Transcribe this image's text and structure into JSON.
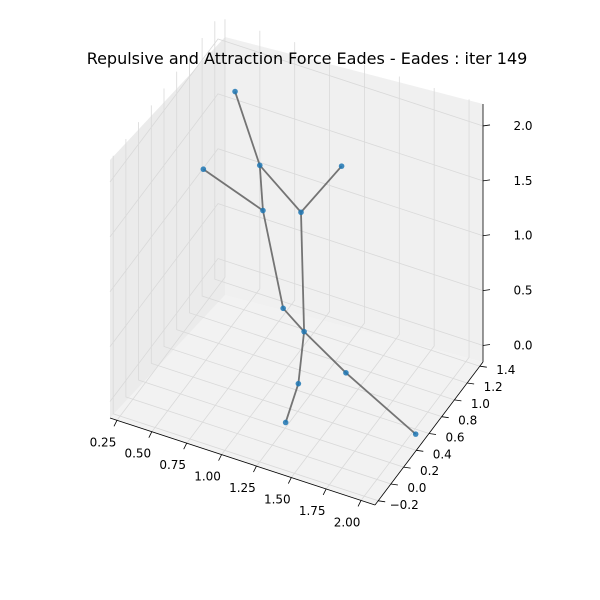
{
  "chart_data": {
    "type": "scatter",
    "projection": "3d",
    "title": "Repulsive and Attraction Force Eades - Eades : iter 149",
    "x_ticks": [
      "0.25",
      "0.50",
      "0.75",
      "1.00",
      "1.25",
      "1.50",
      "1.75",
      "2.00"
    ],
    "y_ticks": [
      "−0.2",
      "0.0",
      "0.2",
      "0.4",
      "0.6",
      "0.8",
      "1.0",
      "1.2",
      "1.4"
    ],
    "z_ticks": [
      "0.0",
      "0.5",
      "1.0",
      "1.5",
      "2.0"
    ],
    "xlim": [
      0.2,
      2.1
    ],
    "ylim": [
      -0.25,
      1.45
    ],
    "zlim": [
      -0.15,
      2.2
    ],
    "grid": true,
    "node_color": "#1f77b4",
    "edge_color": "#666666",
    "nodes": [
      {
        "x": 0.55,
        "y": 0.95,
        "z": 2.05
      },
      {
        "x": 0.75,
        "y": 0.9,
        "z": 1.5
      },
      {
        "x": 0.75,
        "y": 0.95,
        "z": 1.05
      },
      {
        "x": 0.3,
        "y": 1.0,
        "z": 1.2
      },
      {
        "x": 1.0,
        "y": 1.0,
        "z": 1.1
      },
      {
        "x": 1.2,
        "y": 1.2,
        "z": 1.45
      },
      {
        "x": 1.1,
        "y": 0.5,
        "z": 0.65
      },
      {
        "x": 1.25,
        "y": 0.5,
        "z": 0.5
      },
      {
        "x": 1.3,
        "y": 0.3,
        "z": 0.2
      },
      {
        "x": 1.55,
        "y": 0.5,
        "z": 0.25
      },
      {
        "x": 1.3,
        "y": 0.1,
        "z": 0.0
      },
      {
        "x": 2.05,
        "y": 0.5,
        "z": -0.1
      }
    ],
    "edges": [
      [
        0,
        1
      ],
      [
        1,
        2
      ],
      [
        1,
        4
      ],
      [
        3,
        2
      ],
      [
        2,
        6
      ],
      [
        4,
        5
      ],
      [
        4,
        7
      ],
      [
        6,
        7
      ],
      [
        7,
        8
      ],
      [
        7,
        9
      ],
      [
        8,
        10
      ],
      [
        9,
        11
      ]
    ]
  }
}
